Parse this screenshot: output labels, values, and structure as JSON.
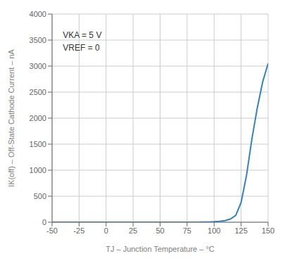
{
  "chart_data": {
    "type": "line",
    "x": [
      -50,
      -25,
      0,
      25,
      50,
      75,
      85,
      90,
      95,
      100,
      105,
      110,
      115,
      120,
      125,
      130,
      135,
      140,
      145,
      150
    ],
    "values": [
      0,
      0,
      0,
      0,
      0,
      0,
      0,
      2,
      5,
      10,
      18,
      30,
      60,
      130,
      380,
      900,
      1600,
      2200,
      2700,
      3050
    ],
    "xlim": [
      -50,
      150
    ],
    "ylim": [
      0,
      4000
    ],
    "xticks": [
      -50,
      -25,
      0,
      25,
      50,
      75,
      100,
      125,
      150
    ],
    "yticks": [
      0,
      500,
      1000,
      1500,
      2000,
      2500,
      3000,
      3500,
      4000
    ],
    "xlabel": "TJ – Junction Temperature – °C",
    "ylabel": "IK(off) – Off-State Cathode Current – nA",
    "annotations": [
      "VKA = 5 V",
      "VREF = 0"
    ],
    "grid": true
  }
}
